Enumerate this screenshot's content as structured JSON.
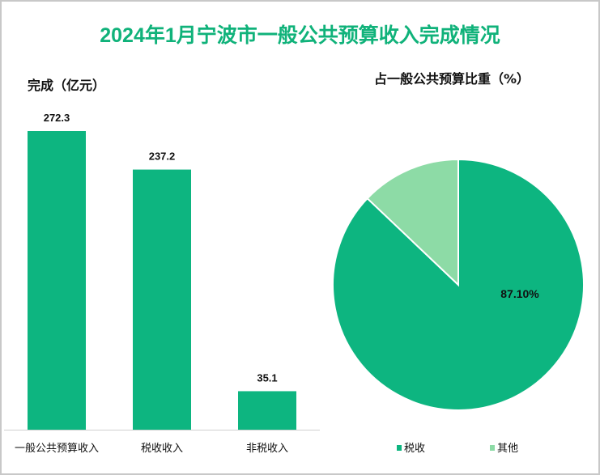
{
  "title": "2024年1月宁波市一般公共预算收入完成情况",
  "chart_data": [
    {
      "type": "bar",
      "title": "完成（亿元）",
      "categories": [
        "一般公共预算收入",
        "税收收入",
        "非税收入"
      ],
      "values": [
        272.3,
        237.2,
        35.1
      ],
      "data_labels": [
        "272.3",
        "237.2",
        "35.1"
      ],
      "ylim": [
        0,
        272.3
      ],
      "grid": false,
      "color": "#0db580"
    },
    {
      "type": "pie",
      "title": "占一般公共预算比重（%）",
      "labels": [
        "税收",
        "其他"
      ],
      "values": [
        87.1,
        12.9
      ],
      "data_labels": [
        "87.10%",
        ""
      ],
      "colors": [
        "#0db580",
        "#8ddba6"
      ],
      "legend": "bottom"
    }
  ]
}
